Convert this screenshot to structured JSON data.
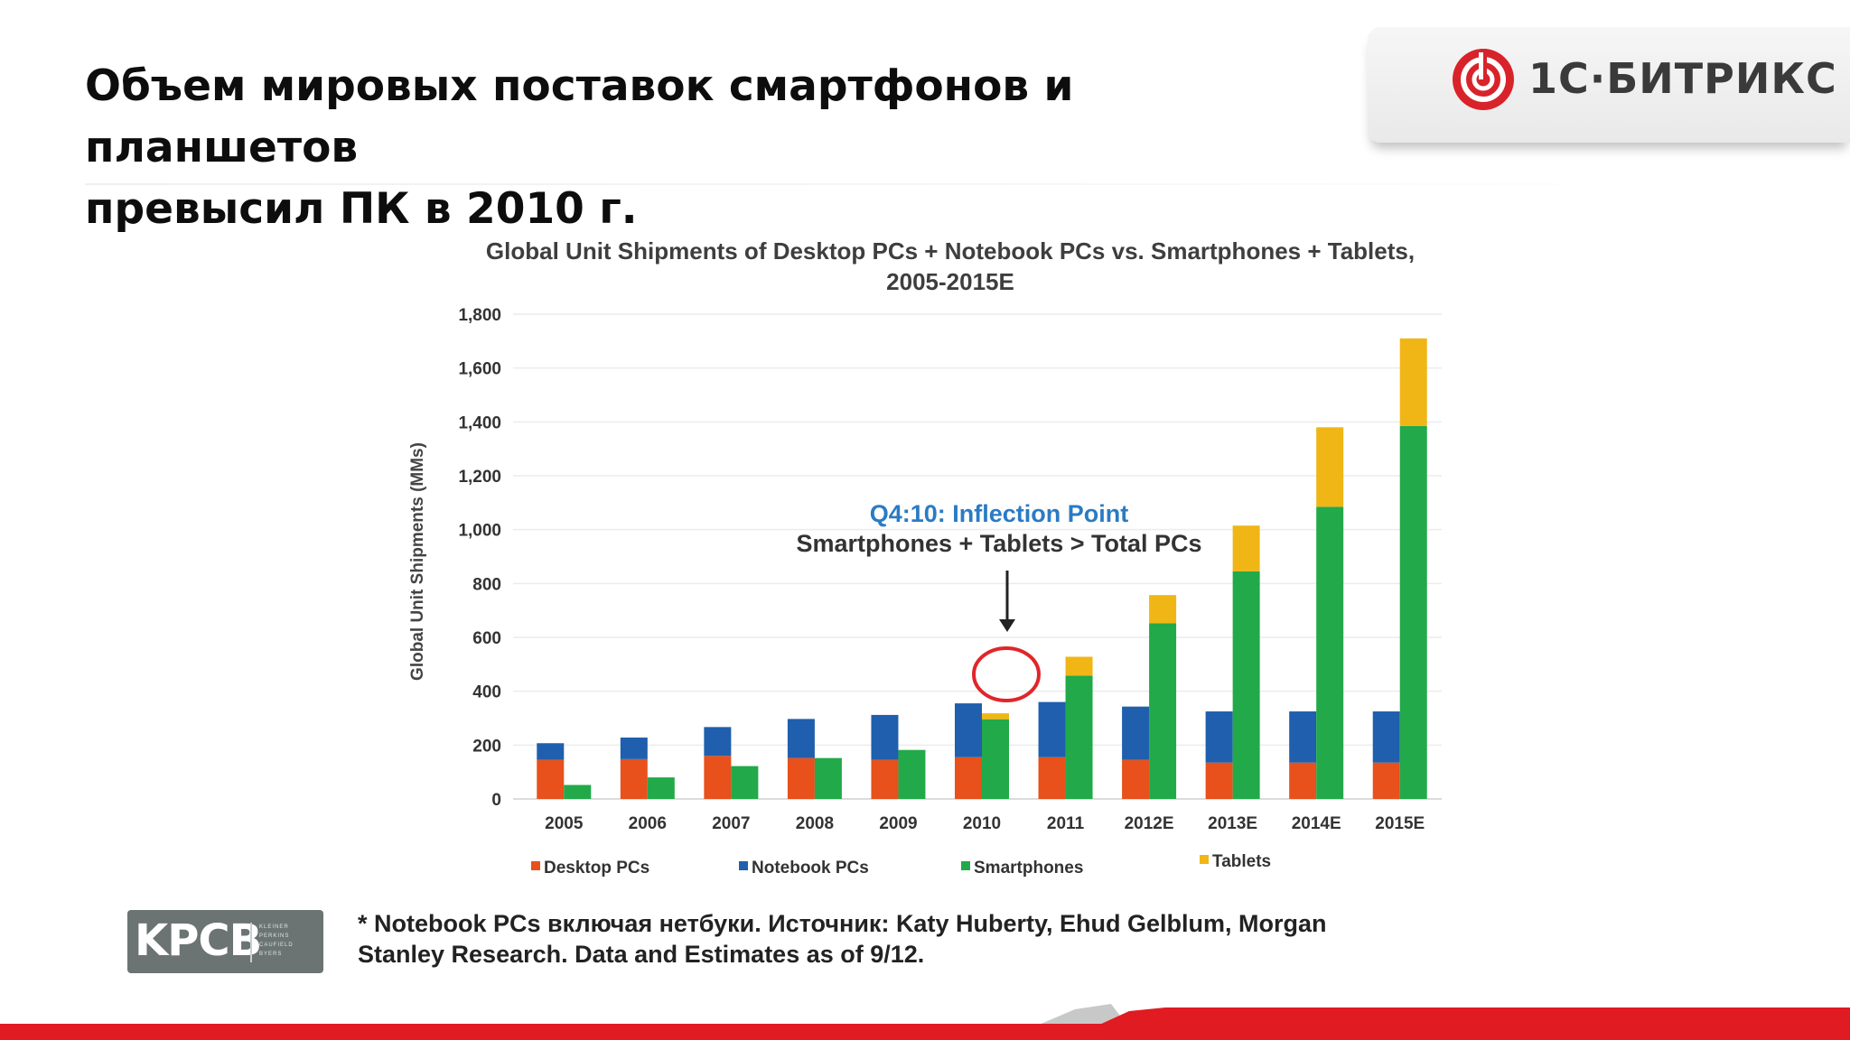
{
  "slide": {
    "title_lines": [
      "Объем мировых поставок смартфонов и планшетов",
      "превысил ПК в 2010 г."
    ]
  },
  "logo": {
    "brand_text": "1С·БИТРИКС",
    "accent_color": "#d8232a"
  },
  "chart_data": {
    "type": "bar",
    "stacked": true,
    "title_lines": [
      "Global Unit Shipments of Desktop PCs + Notebook PCs vs. Smartphones + Tablets,",
      "2005-2015E"
    ],
    "ylabel": "Global Unit Shipments (MMs)",
    "xlabel": "",
    "ylim": [
      0,
      1800
    ],
    "yticks": [
      0,
      200,
      400,
      600,
      800,
      1000,
      1200,
      1400,
      1600,
      1800
    ],
    "ytick_labels": [
      "0",
      "200",
      "400",
      "600",
      "800",
      "1,000",
      "1,200",
      "1,400",
      "1,600",
      "1,800"
    ],
    "grid": true,
    "legend_position": "bottom",
    "categories": [
      "2005",
      "2006",
      "2007",
      "2008",
      "2009",
      "2010",
      "2011",
      "2012E",
      "2013E",
      "2014E",
      "2015E"
    ],
    "stacks": [
      {
        "name": "PCs",
        "series": [
          {
            "name": "Desktop PCs",
            "color": "#e8501c",
            "values": [
              145,
              148,
              160,
              152,
              145,
              155,
              155,
              145,
              135,
              135,
              135
            ]
          },
          {
            "name": "Notebook PCs",
            "color": "#1f5fad",
            "values": [
              62,
              80,
              107,
              145,
              167,
              200,
              205,
              198,
              190,
              190,
              190
            ]
          }
        ]
      },
      {
        "name": "Mobile",
        "series": [
          {
            "name": "Smartphones",
            "color": "#22a94a",
            "values": [
              52,
              80,
              122,
              152,
              182,
              296,
              458,
              652,
              845,
              1085,
              1385
            ]
          },
          {
            "name": "Tablets",
            "color": "#f0b616",
            "values": [
              0,
              0,
              0,
              0,
              0,
              22,
              70,
              105,
              170,
              295,
              325
            ]
          }
        ]
      }
    ],
    "legend": [
      "Desktop PCs",
      "Notebook PCs",
      "Smartphones",
      "Tablets"
    ],
    "annotation": {
      "line1": "Q4:10: Inflection Point",
      "line2": "Smartphones + Tablets > Total PCs",
      "category": "2010"
    }
  },
  "kpcb": {
    "letters": "KPCB",
    "names": [
      "KLEINER",
      "PERKINS",
      "CAUFIELD",
      "BYERS"
    ]
  },
  "footnote": {
    "line1": "* Notebook PCs включая нетбуки. Источник: Katy Huberty, Ehud Gelblum, Morgan",
    "line2": "Stanley Research. Data and Estimates as of 9/12."
  }
}
